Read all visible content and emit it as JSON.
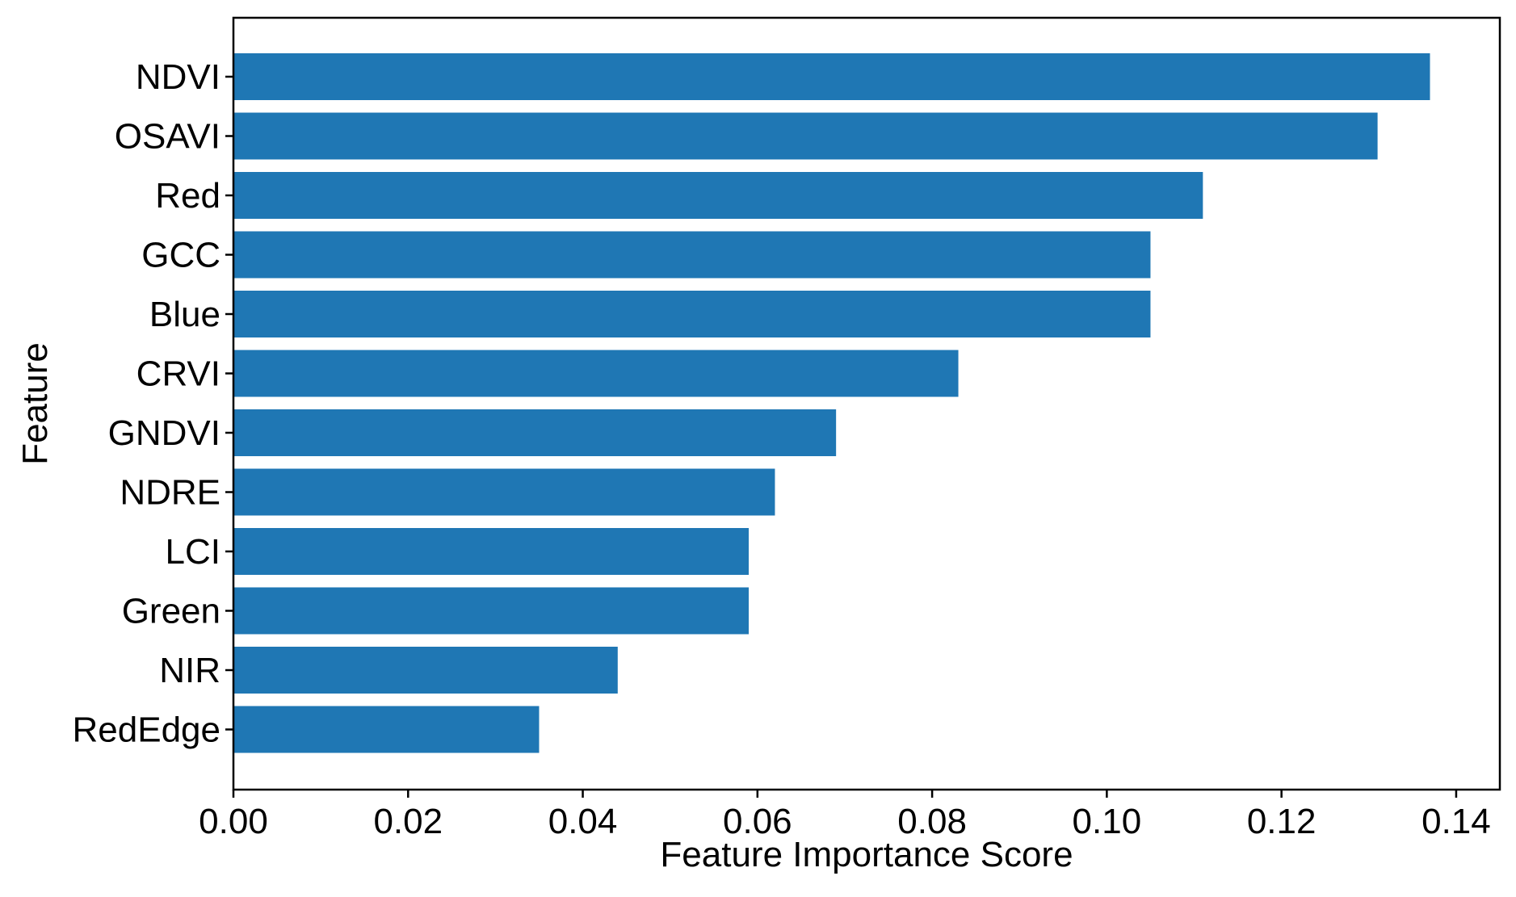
{
  "chart_data": {
    "type": "bar",
    "orientation": "horizontal",
    "title": "",
    "xlabel": "Feature Importance Score",
    "ylabel": "Feature",
    "categories": [
      "NDVI",
      "OSAVI",
      "Red",
      "GCC",
      "Blue",
      "CRVI",
      "GNDVI",
      "NDRE",
      "LCI",
      "Green",
      "NIR",
      "RedEdge"
    ],
    "values": [
      0.137,
      0.131,
      0.111,
      0.105,
      0.105,
      0.083,
      0.069,
      0.062,
      0.059,
      0.059,
      0.044,
      0.035
    ],
    "xlim": [
      0,
      0.145
    ],
    "xticks": [
      0.0,
      0.02,
      0.04,
      0.06,
      0.08,
      0.1,
      0.12,
      0.14
    ],
    "xtick_labels": [
      "0.00",
      "0.02",
      "0.04",
      "0.06",
      "0.08",
      "0.10",
      "0.12",
      "0.14"
    ],
    "grid": false,
    "legend": "none",
    "bar_color": "#1f77b4"
  }
}
